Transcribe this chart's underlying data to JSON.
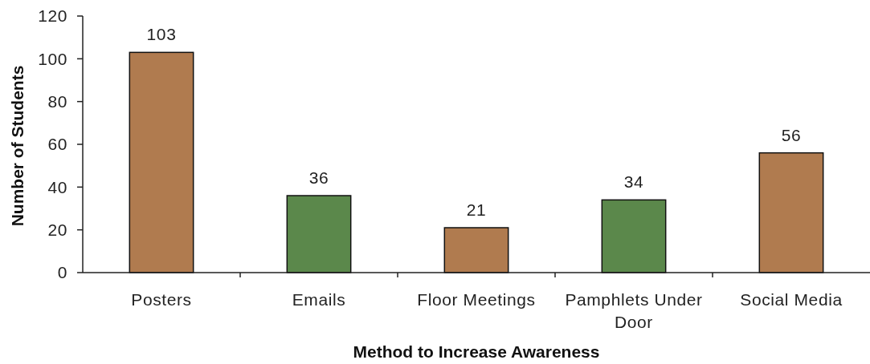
{
  "chart_data": {
    "type": "bar",
    "xlabel": "Method to Increase Awareness",
    "ylabel": "Number of Students",
    "categories": [
      "Posters",
      "Emails",
      "Floor Meetings",
      "Pamphlets Under Door",
      "Social Media"
    ],
    "values": [
      103,
      36,
      21,
      34,
      56
    ],
    "colors": [
      "#b07b4f",
      "#5b884b",
      "#b07b4f",
      "#5b884b",
      "#b07b4f"
    ],
    "ylim": [
      0,
      120
    ],
    "yticks": [
      0,
      20,
      40,
      60,
      80,
      100,
      120
    ],
    "data_labels": true
  }
}
